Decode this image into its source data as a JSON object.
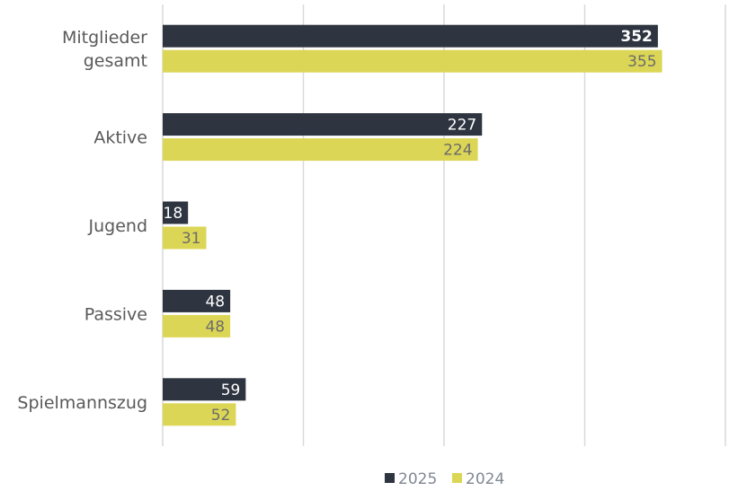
{
  "chart_data": {
    "type": "bar",
    "orientation": "horizontal",
    "categories": [
      "Mitglieder gesamt",
      "Aktive",
      "Jugend",
      "Passive",
      "Spielmannszug"
    ],
    "series": [
      {
        "name": "2025",
        "values": [
          352,
          227,
          18,
          48,
          59
        ],
        "color": "#2e3440"
      },
      {
        "name": "2024",
        "values": [
          355,
          224,
          31,
          48,
          52
        ],
        "color": "#dcd656"
      }
    ],
    "xlim": [
      0,
      400
    ],
    "grid": true,
    "legend_position": "bottom",
    "data_label_colors": {
      "2025": "#ffffff",
      "2024": "#6b6b6b"
    }
  }
}
